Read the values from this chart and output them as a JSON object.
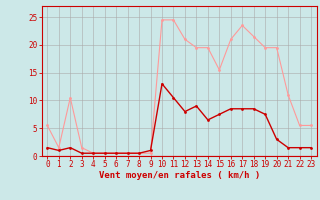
{
  "hours": [
    0,
    1,
    2,
    3,
    4,
    5,
    6,
    7,
    8,
    9,
    10,
    11,
    12,
    13,
    14,
    15,
    16,
    17,
    18,
    19,
    20,
    21,
    22,
    23
  ],
  "wind_avg": [
    1.5,
    1.0,
    1.5,
    0.5,
    0.5,
    0.5,
    0.5,
    0.5,
    0.5,
    1.0,
    13.0,
    10.5,
    8.0,
    9.0,
    6.5,
    7.5,
    8.5,
    8.5,
    8.5,
    7.5,
    3.0,
    1.5,
    1.5,
    1.5
  ],
  "wind_gust": [
    5.5,
    1.5,
    10.5,
    1.5,
    0.5,
    0.5,
    0.5,
    0.5,
    0.5,
    0.5,
    24.5,
    24.5,
    21.0,
    19.5,
    19.5,
    15.5,
    21.0,
    23.5,
    21.5,
    19.5,
    19.5,
    11.0,
    5.5,
    5.5
  ],
  "wind_avg_color": "#cc0000",
  "wind_gust_color": "#ff9999",
  "bg_color": "#cce8e8",
  "grid_color": "#aaaaaa",
  "xlabel": "Vent moyen/en rafales ( km/h )",
  "xlabel_color": "#cc0000",
  "ylabel_ticks": [
    0,
    5,
    10,
    15,
    20,
    25
  ],
  "ylim": [
    0,
    27
  ],
  "xlim": [
    -0.5,
    23.5
  ],
  "linewidth_avg": 1.0,
  "linewidth_gust": 0.8,
  "marker_size": 2.0,
  "tick_fontsize": 5.5,
  "xlabel_fontsize": 6.5
}
